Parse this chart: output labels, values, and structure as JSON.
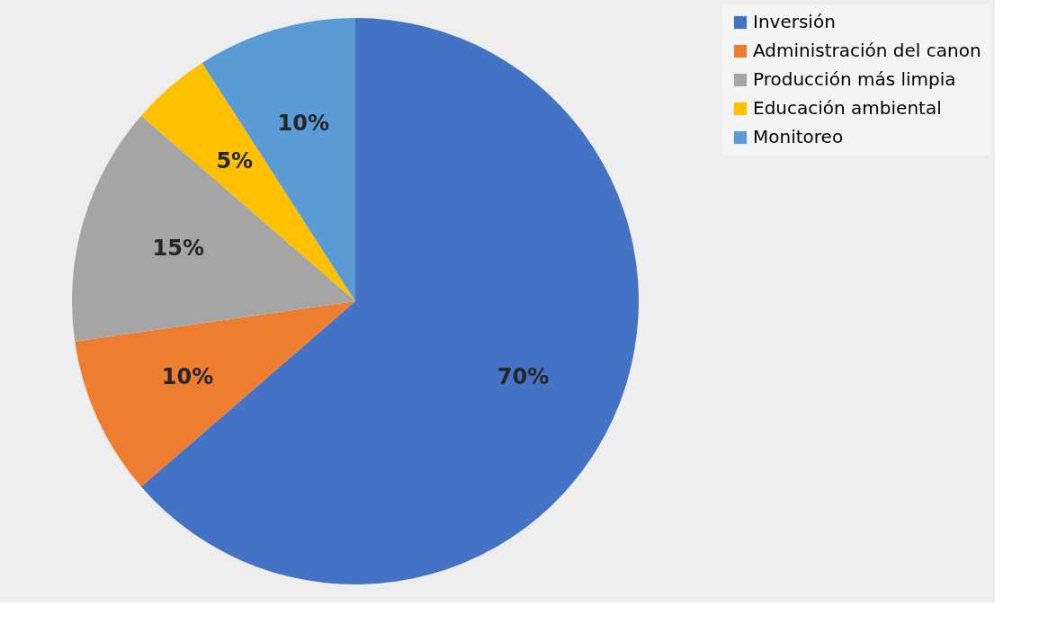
{
  "chart_data": {
    "type": "pie",
    "categories": [
      "Inversión",
      "Administración del canon",
      "Producción más limpia",
      "Educación ambiental",
      "Monitoreo"
    ],
    "values": [
      70,
      10,
      15,
      5,
      10
    ],
    "colors": [
      "#4472c4",
      "#ed7d31",
      "#a5a5a5",
      "#ffc000",
      "#5b9bd5"
    ],
    "value_labels": [
      "70%",
      "10%",
      "15%",
      "5%",
      "10%"
    ],
    "legend": "right"
  }
}
